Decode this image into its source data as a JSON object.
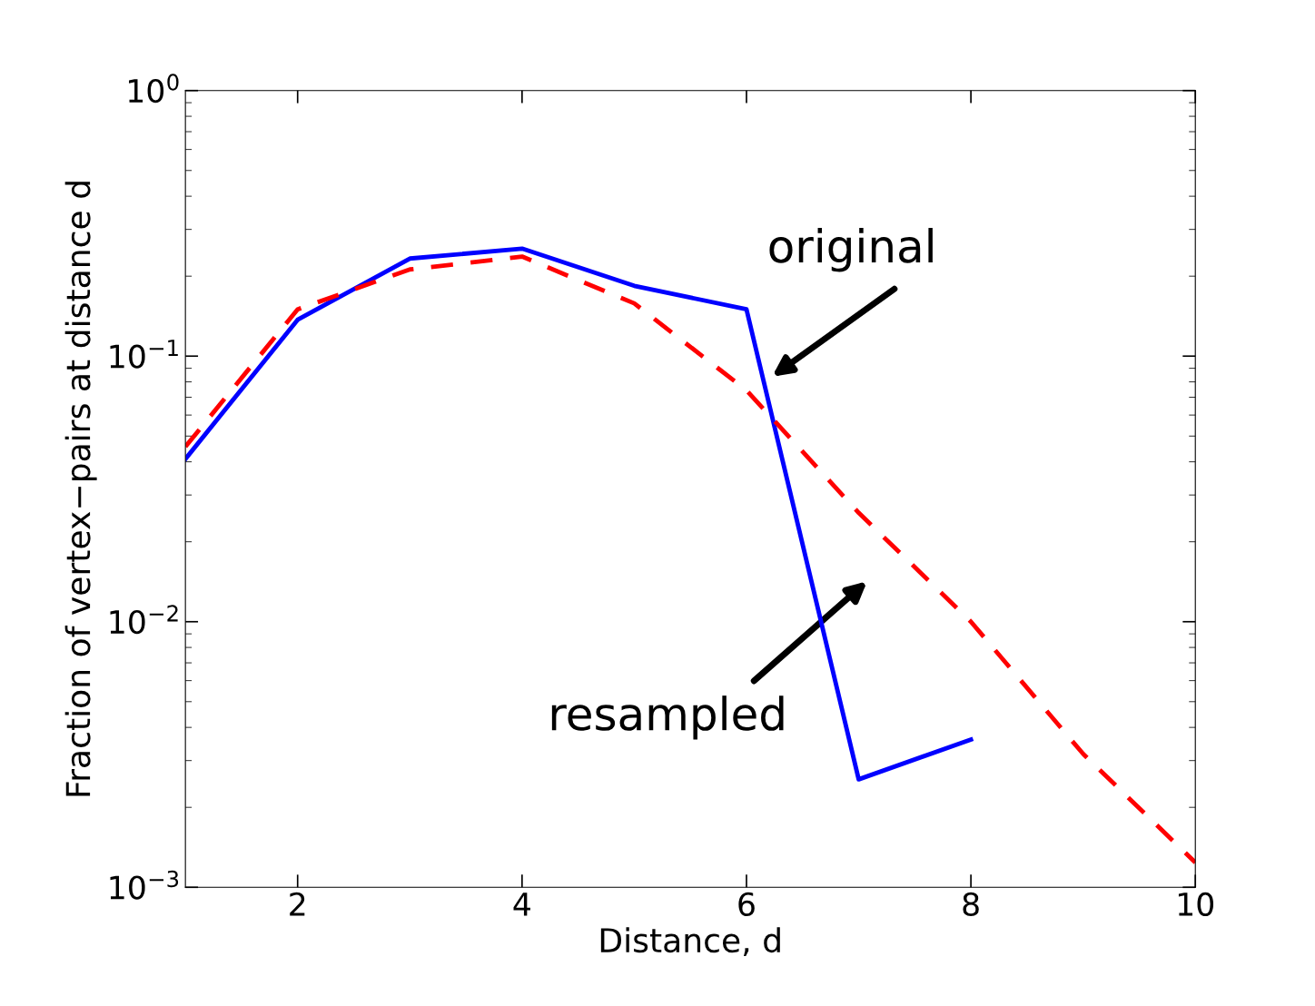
{
  "chart_data": {
    "type": "line",
    "xlabel": "Distance, d",
    "ylabel": "Fraction of vertex−pairs at distance d",
    "x": [
      1,
      2,
      3,
      4,
      5,
      6,
      7,
      8,
      9,
      10
    ],
    "series": [
      {
        "color": "#0000ff",
        "line_style": "solid",
        "values": [
          0.041,
          0.137,
          0.233,
          0.254,
          0.184,
          0.15,
          0.00255,
          0.0036,
          null,
          null
        ]
      },
      {
        "color": "#ff0000",
        "line_style": "dashed",
        "values": [
          0.0456,
          0.15,
          0.212,
          0.237,
          0.158,
          0.0743,
          0.0257,
          0.01,
          0.00318,
          0.00124
        ]
      }
    ],
    "log": "y",
    "xlim": [
      1,
      10
    ],
    "xticks": [
      2,
      4,
      6,
      8,
      10
    ],
    "ylim": [
      0.001,
      1
    ],
    "yticks": [
      {
        "value": 1,
        "label": "10$^{0}$"
      },
      {
        "value": 0.1,
        "label": "10$^{−1}$"
      },
      {
        "value": 0.01,
        "label": "10$^{−2}$"
      },
      {
        "value": 0.001,
        "label": "10$^{−3}$"
      }
    ],
    "grid": false,
    "marker": "none",
    "annotations": [
      "original",
      "resampled"
    ]
  }
}
